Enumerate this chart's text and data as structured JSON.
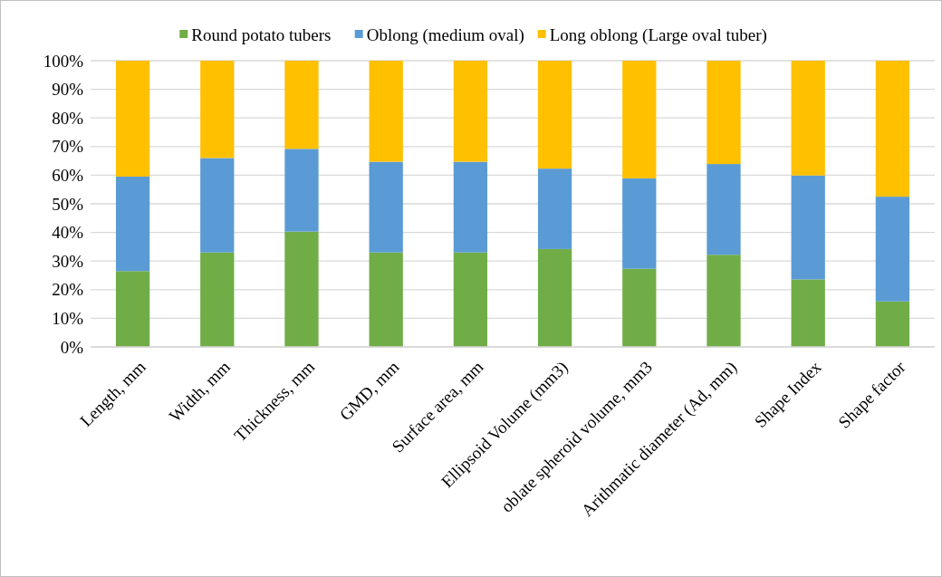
{
  "chart_data": {
    "type": "bar",
    "stacked": true,
    "categories": [
      "Length, mm",
      "Width, mm",
      "Thickness, mm",
      "GMD, mm",
      "Surface area, mm",
      "Ellipsoid Volume (mm3)",
      "oblate spheroid volume, mm3",
      "Arithmatic diameter (Ad, mm)",
      "Shape Index",
      "Shape factor"
    ],
    "series": [
      {
        "name": "Round potato tubers",
        "color": "#70ad47",
        "values": [
          26.5,
          33,
          40.3,
          33,
          33,
          34.2,
          27.3,
          32.2,
          23.6,
          15.9
        ]
      },
      {
        "name": "Oblong (medium oval)",
        "color": "#5b9bd5",
        "values": [
          33,
          33,
          28.9,
          31.7,
          31.7,
          28.1,
          31.6,
          31.7,
          36.3,
          36.6
        ]
      },
      {
        "name": "Long oblong (Large oval tuber)",
        "color": "#ffc000",
        "values": [
          40.5,
          34,
          30.8,
          35.3,
          35.3,
          37.7,
          41.1,
          36.1,
          40.1,
          47.5
        ]
      }
    ],
    "ylim": [
      0,
      100
    ],
    "yticks": [
      {
        "value": 0,
        "label": "0%"
      },
      {
        "value": 10,
        "label": "10%"
      },
      {
        "value": 20,
        "label": "20%"
      },
      {
        "value": 30,
        "label": "30%"
      },
      {
        "value": 40,
        "label": "40%"
      },
      {
        "value": 50,
        "label": "50%"
      },
      {
        "value": 60,
        "label": "60%"
      },
      {
        "value": 70,
        "label": "70%"
      },
      {
        "value": 80,
        "label": "80%"
      },
      {
        "value": 90,
        "label": "90%"
      },
      {
        "value": 100,
        "label": "100%"
      }
    ],
    "grid": "y",
    "legend": "top"
  }
}
